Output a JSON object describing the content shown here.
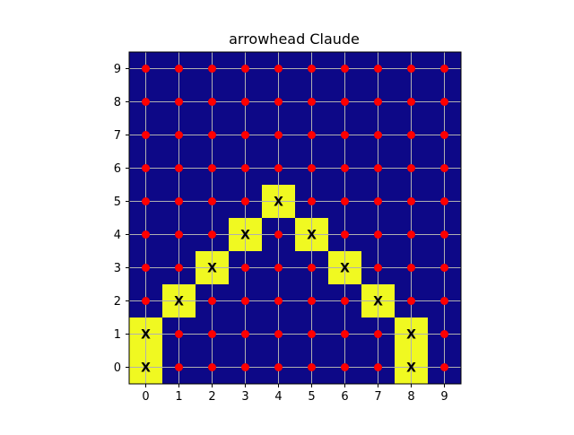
{
  "chart_data": {
    "type": "heatmap",
    "title": "arrowhead Claude",
    "xlabel": "",
    "ylabel": "",
    "x_ticks": [
      0,
      1,
      2,
      3,
      4,
      5,
      6,
      7,
      8,
      9
    ],
    "y_ticks": [
      0,
      1,
      2,
      3,
      4,
      5,
      6,
      7,
      8,
      9
    ],
    "xlim": [
      -0.5,
      9.5
    ],
    "ylim": [
      -0.5,
      9.5
    ],
    "grid": true,
    "grid_size": [
      10,
      10
    ],
    "colors": {
      "background": "#0d0887",
      "highlight": "#f0f921",
      "dot": "#ff0000",
      "grid": "#b0b0b0"
    },
    "marker_label": "X",
    "highlighted_cells": [
      [
        0,
        0
      ],
      [
        0,
        1
      ],
      [
        1,
        2
      ],
      [
        2,
        3
      ],
      [
        3,
        4
      ],
      [
        4,
        5
      ],
      [
        5,
        4
      ],
      [
        6,
        3
      ],
      [
        7,
        2
      ],
      [
        8,
        1
      ],
      [
        8,
        0
      ]
    ],
    "dot_marker": "circle"
  }
}
